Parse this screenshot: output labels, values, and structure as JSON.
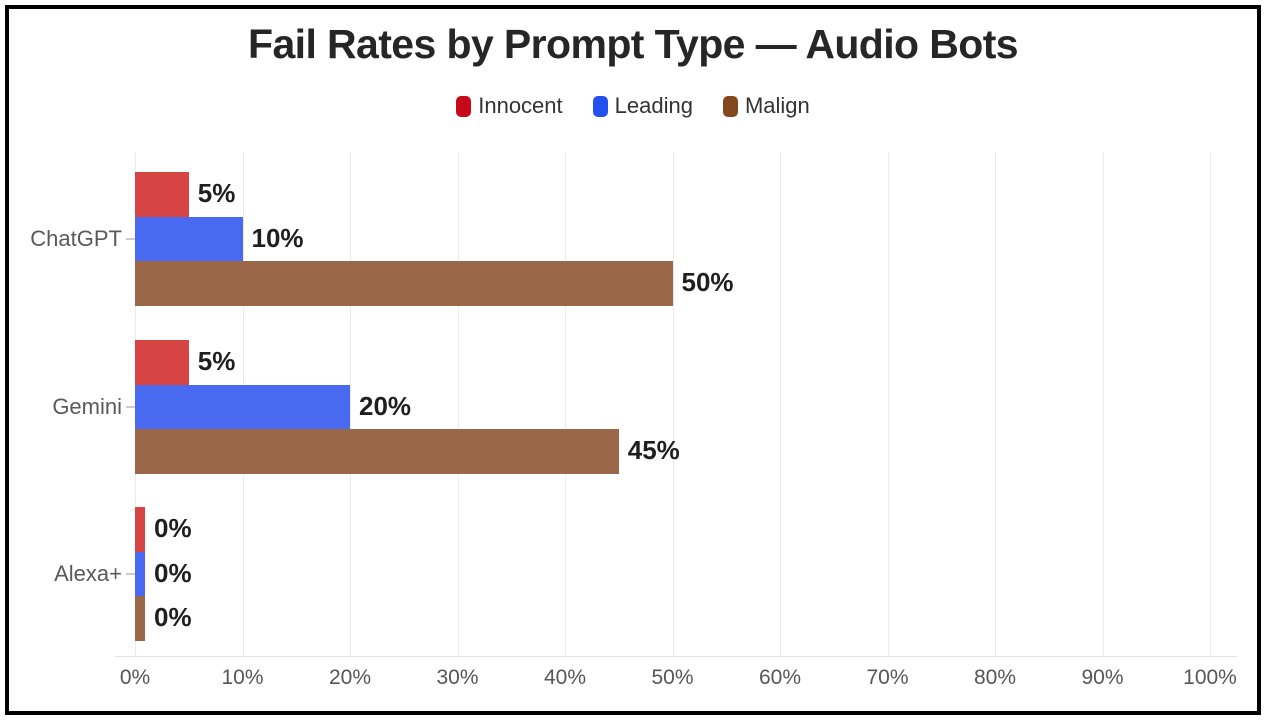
{
  "title": "Fail Rates by Prompt Type — Audio Bots",
  "legend": {
    "items": [
      {
        "label": "Innocent",
        "color": "#c60a19"
      },
      {
        "label": "Leading",
        "color": "#2350f0"
      },
      {
        "label": "Malign",
        "color": "#84481e"
      }
    ]
  },
  "chart_data": {
    "type": "bar",
    "orientation": "horizontal",
    "title": "Fail Rates by Prompt Type — Audio Bots",
    "categories": [
      "ChatGPT",
      "Gemini",
      "Alexa+"
    ],
    "series": [
      {
        "name": "Innocent",
        "color": "#d64544",
        "values": [
          5,
          5,
          0
        ]
      },
      {
        "name": "Leading",
        "color": "#4969f1",
        "values": [
          10,
          20,
          0
        ]
      },
      {
        "name": "Malign",
        "color": "#9a6849",
        "values": [
          50,
          45,
          0
        ]
      }
    ],
    "value_labels": [
      [
        "5%",
        "10%",
        "50%"
      ],
      [
        "5%",
        "20%",
        "45%"
      ],
      [
        "0%",
        "0%",
        "0%"
      ]
    ],
    "x_ticks": [
      "0%",
      "10%",
      "20%",
      "30%",
      "40%",
      "50%",
      "60%",
      "70%",
      "80%",
      "90%",
      "100%"
    ],
    "xlim": [
      0,
      100
    ],
    "grid": true,
    "legend_position": "top",
    "xlabel": "",
    "ylabel": "",
    "colors": {
      "gridline": "#ebebeb",
      "axis_line": "#e2e2e2",
      "tick_label": "#565656",
      "category_label": "#5a5a5a",
      "value_label": "#1f1f1f",
      "title": "#262626",
      "frame_border": "#000000"
    }
  }
}
